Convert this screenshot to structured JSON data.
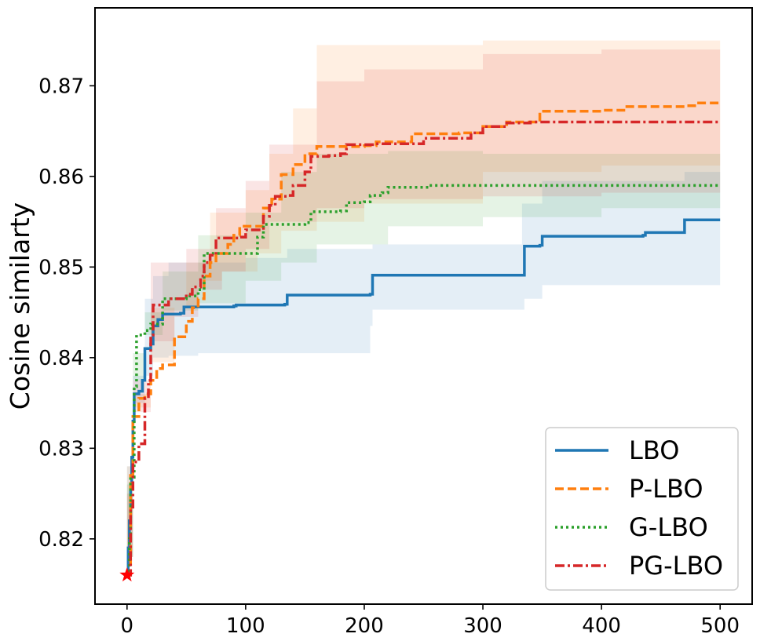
{
  "chart_data": {
    "type": "line",
    "title": "",
    "xlabel": "",
    "ylabel": "Cosine similarty",
    "xlim": [
      -27,
      527
    ],
    "ylim": [
      0.8128,
      0.8786
    ],
    "xticks": [
      0,
      100,
      200,
      300,
      400,
      500
    ],
    "xtick_labels": [
      "0",
      "100",
      "200",
      "300",
      "400",
      "500"
    ],
    "yticks": [
      0.82,
      0.83,
      0.84,
      0.85,
      0.86,
      0.87
    ],
    "ytick_labels": [
      "0.82",
      "0.83",
      "0.84",
      "0.85",
      "0.86",
      "0.87"
    ],
    "grid": false,
    "legend_position": "lower-right",
    "start_marker": {
      "x": 0,
      "y": 0.816,
      "symbol": "star",
      "color": "#ff0000"
    },
    "series": [
      {
        "name": "LBO",
        "color": "#1f77b4",
        "dash": "solid",
        "points": [
          [
            0,
            0.816
          ],
          [
            1,
            0.819
          ],
          [
            2,
            0.822
          ],
          [
            3,
            0.826
          ],
          [
            4,
            0.829
          ],
          [
            5,
            0.833
          ],
          [
            6,
            0.836
          ],
          [
            10,
            0.8363
          ],
          [
            13,
            0.8375
          ],
          [
            15,
            0.841
          ],
          [
            20,
            0.8415
          ],
          [
            22,
            0.8435
          ],
          [
            26,
            0.8442
          ],
          [
            30,
            0.8448
          ],
          [
            45,
            0.8449
          ],
          [
            48,
            0.8456
          ],
          [
            90,
            0.8457
          ],
          [
            92,
            0.8458
          ],
          [
            133,
            0.8459
          ],
          [
            135,
            0.8469
          ],
          [
            205,
            0.847
          ],
          [
            207,
            0.8491
          ],
          [
            333,
            0.8491
          ],
          [
            335,
            0.8523
          ],
          [
            348,
            0.8524
          ],
          [
            350,
            0.8534
          ],
          [
            435,
            0.8535
          ],
          [
            437,
            0.8538
          ],
          [
            468,
            0.8538
          ],
          [
            470,
            0.8552
          ],
          [
            500,
            0.8552
          ]
        ],
        "band_upper": [
          [
            0,
            0.818
          ],
          [
            5,
            0.838
          ],
          [
            15,
            0.8465
          ],
          [
            22,
            0.849
          ],
          [
            35,
            0.8505
          ],
          [
            100,
            0.851
          ],
          [
            135,
            0.852
          ],
          [
            207,
            0.8525
          ],
          [
            333,
            0.857
          ],
          [
            350,
            0.8595
          ],
          [
            470,
            0.8605
          ],
          [
            500,
            0.861
          ]
        ],
        "band_lower": [
          [
            0,
            0.816
          ],
          [
            5,
            0.828
          ],
          [
            15,
            0.835
          ],
          [
            22,
            0.838
          ],
          [
            35,
            0.84
          ],
          [
            60,
            0.8402
          ],
          [
            92,
            0.8405
          ],
          [
            205,
            0.8405
          ],
          [
            207,
            0.8435
          ],
          [
            335,
            0.8453
          ],
          [
            350,
            0.8465
          ],
          [
            470,
            0.848
          ],
          [
            500,
            0.848
          ]
        ]
      },
      {
        "name": "P-LBO",
        "color": "#ff7f0e",
        "dash": "dashed",
        "points": [
          [
            0,
            0.816
          ],
          [
            3,
            0.827
          ],
          [
            5,
            0.8335
          ],
          [
            10,
            0.8355
          ],
          [
            15,
            0.836
          ],
          [
            20,
            0.8375
          ],
          [
            25,
            0.8388
          ],
          [
            30,
            0.8392
          ],
          [
            40,
            0.8423
          ],
          [
            50,
            0.844
          ],
          [
            55,
            0.8455
          ],
          [
            60,
            0.8465
          ],
          [
            65,
            0.849
          ],
          [
            70,
            0.8505
          ],
          [
            75,
            0.8515
          ],
          [
            85,
            0.8525
          ],
          [
            90,
            0.8535
          ],
          [
            95,
            0.8545
          ],
          [
            110,
            0.8545
          ],
          [
            115,
            0.8565
          ],
          [
            122,
            0.8575
          ],
          [
            130,
            0.8602
          ],
          [
            140,
            0.8613
          ],
          [
            150,
            0.8625
          ],
          [
            160,
            0.8633
          ],
          [
            200,
            0.8634
          ],
          [
            210,
            0.8638
          ],
          [
            240,
            0.8647
          ],
          [
            280,
            0.8648
          ],
          [
            300,
            0.8655
          ],
          [
            320,
            0.866
          ],
          [
            345,
            0.866
          ],
          [
            348,
            0.8672
          ],
          [
            400,
            0.8673
          ],
          [
            420,
            0.8677
          ],
          [
            470,
            0.8678
          ],
          [
            480,
            0.8681
          ],
          [
            500,
            0.8681
          ]
        ],
        "band_upper": [
          [
            0,
            0.818
          ],
          [
            5,
            0.836
          ],
          [
            20,
            0.8455
          ],
          [
            50,
            0.8505
          ],
          [
            70,
            0.856
          ],
          [
            100,
            0.8585
          ],
          [
            120,
            0.8625
          ],
          [
            140,
            0.8675
          ],
          [
            160,
            0.8745
          ],
          [
            300,
            0.875
          ],
          [
            500,
            0.8752
          ]
        ],
        "band_lower": [
          [
            0,
            0.816
          ],
          [
            5,
            0.828
          ],
          [
            20,
            0.8345
          ],
          [
            40,
            0.8395
          ],
          [
            60,
            0.8455
          ],
          [
            80,
            0.8485
          ],
          [
            110,
            0.8495
          ],
          [
            130,
            0.8515
          ],
          [
            160,
            0.854
          ],
          [
            200,
            0.855
          ],
          [
            300,
            0.857
          ],
          [
            400,
            0.8605
          ],
          [
            500,
            0.8612
          ]
        ]
      },
      {
        "name": "G-LBO",
        "color": "#2ca02c",
        "dash": "dotted",
        "points": [
          [
            0,
            0.816
          ],
          [
            2,
            0.82
          ],
          [
            3,
            0.8268
          ],
          [
            6,
            0.8368
          ],
          [
            8,
            0.8425
          ],
          [
            15,
            0.843
          ],
          [
            20,
            0.8437
          ],
          [
            30,
            0.8465
          ],
          [
            50,
            0.8468
          ],
          [
            60,
            0.8475
          ],
          [
            65,
            0.8515
          ],
          [
            105,
            0.8515
          ],
          [
            110,
            0.8533
          ],
          [
            115,
            0.8547
          ],
          [
            150,
            0.8549
          ],
          [
            155,
            0.8561
          ],
          [
            180,
            0.8562
          ],
          [
            185,
            0.8571
          ],
          [
            200,
            0.8572
          ],
          [
            205,
            0.8579
          ],
          [
            215,
            0.8582
          ],
          [
            220,
            0.8588
          ],
          [
            250,
            0.8588
          ],
          [
            255,
            0.859
          ],
          [
            500,
            0.859
          ]
        ],
        "band_upper": [
          [
            0,
            0.818
          ],
          [
            5,
            0.8375
          ],
          [
            15,
            0.845
          ],
          [
            30,
            0.8495
          ],
          [
            60,
            0.8535
          ],
          [
            100,
            0.856
          ],
          [
            130,
            0.8605
          ],
          [
            160,
            0.8625
          ],
          [
            220,
            0.8628
          ],
          [
            300,
            0.8625
          ],
          [
            500,
            0.8625
          ]
        ],
        "band_lower": [
          [
            0,
            0.816
          ],
          [
            5,
            0.826
          ],
          [
            15,
            0.8405
          ],
          [
            30,
            0.8425
          ],
          [
            60,
            0.8452
          ],
          [
            100,
            0.846
          ],
          [
            130,
            0.8485
          ],
          [
            160,
            0.8505
          ],
          [
            220,
            0.8525
          ],
          [
            300,
            0.8545
          ],
          [
            400,
            0.8555
          ],
          [
            500,
            0.8565
          ]
        ]
      },
      {
        "name": "PG-LBO",
        "color": "#d62728",
        "dash": "dashdot",
        "points": [
          [
            0,
            0.816
          ],
          [
            3,
            0.8235
          ],
          [
            5,
            0.8285
          ],
          [
            10,
            0.8305
          ],
          [
            15,
            0.8355
          ],
          [
            18,
            0.8375
          ],
          [
            20,
            0.8425
          ],
          [
            22,
            0.8458
          ],
          [
            35,
            0.8465
          ],
          [
            50,
            0.847
          ],
          [
            55,
            0.8478
          ],
          [
            62,
            0.849
          ],
          [
            65,
            0.8505
          ],
          [
            70,
            0.8513
          ],
          [
            75,
            0.8532
          ],
          [
            95,
            0.8533
          ],
          [
            100,
            0.8541
          ],
          [
            115,
            0.8556
          ],
          [
            120,
            0.8568
          ],
          [
            125,
            0.8578
          ],
          [
            135,
            0.8579
          ],
          [
            140,
            0.859
          ],
          [
            150,
            0.8605
          ],
          [
            155,
            0.8622
          ],
          [
            170,
            0.8623
          ],
          [
            180,
            0.8625
          ],
          [
            185,
            0.8635
          ],
          [
            210,
            0.8636
          ],
          [
            250,
            0.8642
          ],
          [
            290,
            0.8648
          ],
          [
            300,
            0.8655
          ],
          [
            320,
            0.8659
          ],
          [
            340,
            0.866
          ],
          [
            500,
            0.8661
          ]
        ],
        "band_upper": [
          [
            0,
            0.818
          ],
          [
            5,
            0.834
          ],
          [
            20,
            0.8505
          ],
          [
            50,
            0.852
          ],
          [
            75,
            0.8565
          ],
          [
            100,
            0.8595
          ],
          [
            120,
            0.8635
          ],
          [
            160,
            0.8705
          ],
          [
            200,
            0.8718
          ],
          [
            300,
            0.8735
          ],
          [
            400,
            0.874
          ],
          [
            500,
            0.874
          ]
        ],
        "band_lower": [
          [
            0,
            0.816
          ],
          [
            5,
            0.825
          ],
          [
            20,
            0.8375
          ],
          [
            40,
            0.8418
          ],
          [
            60,
            0.8445
          ],
          [
            80,
            0.8475
          ],
          [
            100,
            0.8495
          ],
          [
            120,
            0.852
          ],
          [
            160,
            0.855
          ],
          [
            200,
            0.8565
          ],
          [
            300,
            0.8575
          ],
          [
            400,
            0.8578
          ],
          [
            500,
            0.8582
          ]
        ]
      }
    ]
  }
}
